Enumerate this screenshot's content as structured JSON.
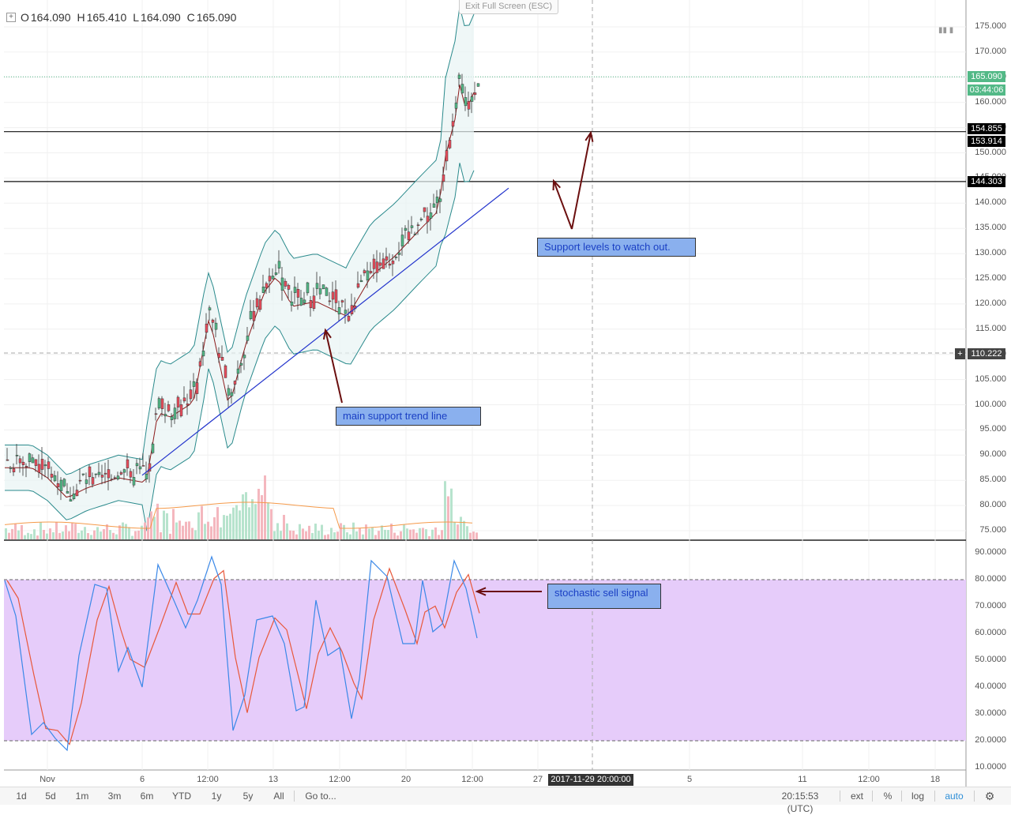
{
  "header": {
    "ohlc": [
      {
        "k": "O",
        "v": "164.090"
      },
      {
        "k": "H",
        "v": "165.410"
      },
      {
        "k": "L",
        "v": "164.090"
      },
      {
        "k": "C",
        "v": "165.090"
      }
    ],
    "exit_fullscreen": "Exit Full Screen (ESC)"
  },
  "price_axis": [
    "175.000",
    "170.000",
    "165.000",
    "160.000",
    "155.000",
    "150.000",
    "145.000",
    "140.000",
    "135.000",
    "130.000",
    "125.000",
    "120.000",
    "115.000",
    "110.000",
    "105.000",
    "100.000",
    "95.000",
    "90.000",
    "85.000",
    "80.000",
    "75.000"
  ],
  "price_tags": {
    "last": "165.090",
    "countdown": "03:44:06",
    "support_upper_a": "154.855",
    "support_upper_b": "153.914",
    "support_lower": "144.303",
    "crosshair": "110.222"
  },
  "stoch_axis": [
    "90.0000",
    "80.0000",
    "70.0000",
    "60.0000",
    "50.0000",
    "40.0000",
    "30.0000",
    "20.0000",
    "10.0000"
  ],
  "annotations": {
    "support_levels": "Support levels to watch out.",
    "trend_line": "main support trend line",
    "stoch_signal": "stochastic sell signal"
  },
  "time_axis": [
    {
      "label": "Nov",
      "x": 60
    },
    {
      "label": "6",
      "x": 180
    },
    {
      "label": "12:00",
      "x": 263
    },
    {
      "label": "13",
      "x": 346
    },
    {
      "label": "12:00",
      "x": 430
    },
    {
      "label": "20",
      "x": 514
    },
    {
      "label": "12:00",
      "x": 598
    },
    {
      "label": "27",
      "x": 681
    },
    {
      "label": "5",
      "x": 873
    },
    {
      "label": "11",
      "x": 1016
    },
    {
      "label": "12:00",
      "x": 1100
    },
    {
      "label": "18",
      "x": 1184
    }
  ],
  "crosshair_date": "2017-11-29 20:00:00",
  "bottom_bar": {
    "ranges": [
      "1d",
      "5d",
      "1m",
      "3m",
      "6m",
      "YTD",
      "1y",
      "5y",
      "All"
    ],
    "goto": "Go to...",
    "clock": "20:15:53 (UTC)",
    "ext": "ext",
    "percent": "%",
    "log": "log",
    "auto": "auto",
    "settings_icon": "gear-icon"
  },
  "colors": {
    "up": "#53b987",
    "down": "#eb4d5c",
    "bollinger": "#2a8a8c",
    "basis": "#8b1a1a",
    "trend": "#2233cc",
    "stoch_k": "#3a88e8",
    "stoch_d": "#e8583a",
    "stoch_band": "#e6ccfa",
    "note_bg": "#8ab0ee"
  }
}
